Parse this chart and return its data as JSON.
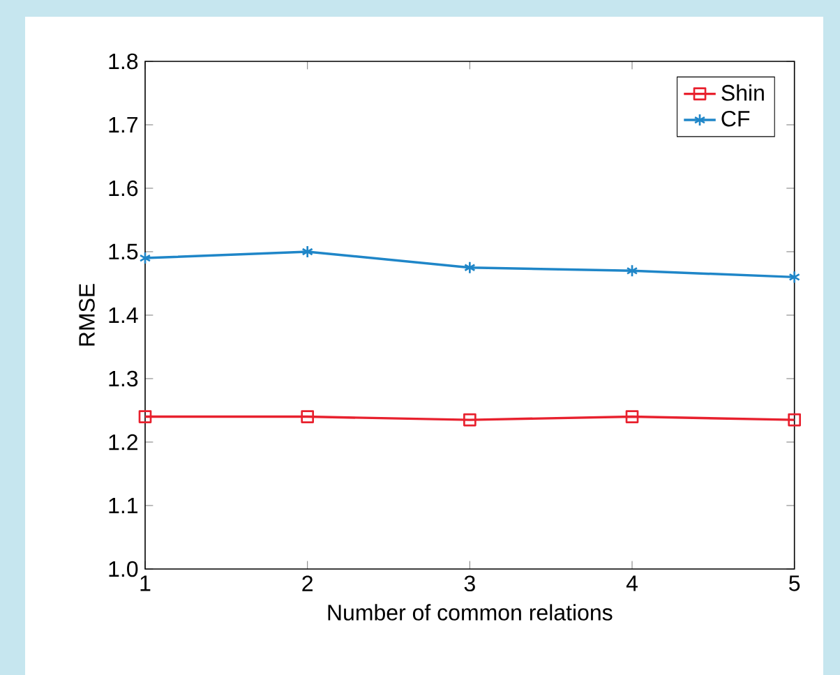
{
  "chart_data": {
    "type": "line",
    "xlabel": "Number of common relations",
    "ylabel": "RMSE",
    "x": [
      1,
      2,
      3,
      4,
      5
    ],
    "series": [
      {
        "name": "Shin",
        "color": "#e8212e",
        "marker": "square",
        "values": [
          1.24,
          1.24,
          1.235,
          1.24,
          1.235
        ]
      },
      {
        "name": "CF",
        "color": "#1f86c8",
        "marker": "cross",
        "values": [
          1.49,
          1.5,
          1.475,
          1.47,
          1.46
        ]
      }
    ],
    "xlim": [
      1,
      5
    ],
    "xticks": [
      1,
      2,
      3,
      4,
      5
    ],
    "ylim": [
      1.0,
      1.8
    ],
    "yticks": [
      {
        "value": 1.0,
        "label": "1.0"
      },
      1.1,
      1.2,
      1.3,
      1.4,
      1.5,
      1.6,
      1.7,
      1.8
    ],
    "grid": false,
    "legend": "top right",
    "line_style": "solid"
  }
}
